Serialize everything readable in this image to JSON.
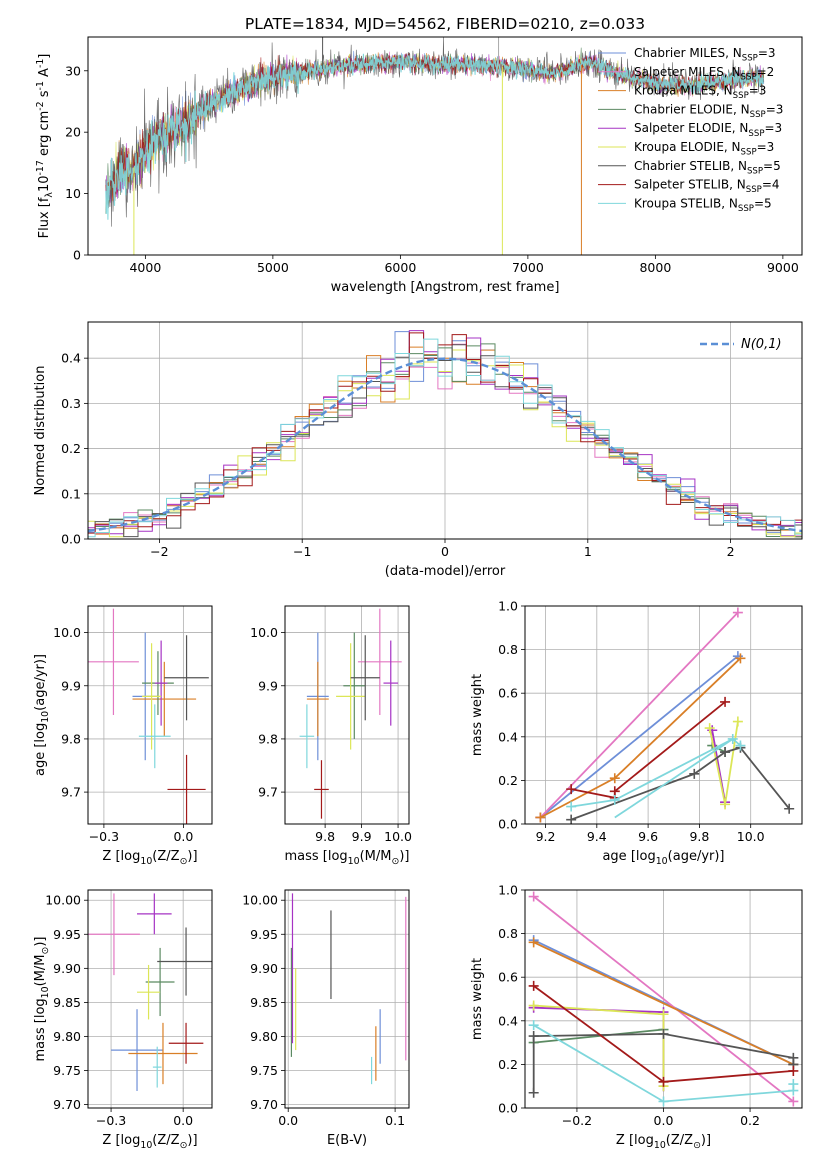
{
  "figure": {
    "title": "PLATE=1834, MJD=54562, FIBERID=0210, z=0.033"
  },
  "series_colors": [
    "#6e8fd8",
    "#e377c2",
    "#d97f27",
    "#5b8a62",
    "#a633c4",
    "#dce657",
    "#555555",
    "#a31a1a",
    "#7fd7dc"
  ],
  "chart_data": [
    {
      "id": "spectrum",
      "type": "line",
      "xlabel": "wavelength [Angstrom, rest frame]",
      "ylabel": "Flux [f$_\\lambda$10$^{-17}$ erg cm$^{-2}$ s$^{-1}$ A$^{-1}$]",
      "xlim": [
        3550,
        9150
      ],
      "ylim": [
        0,
        35.5
      ],
      "xticks": [
        4000,
        5000,
        6000,
        7000,
        8000,
        9000
      ],
      "yticks": [
        0,
        10,
        20,
        30
      ],
      "legend": "right",
      "legend_entries": [
        "Chabrier MILES, N$_{SSP}$=3",
        "Salpeter MILES, N$_{SSP}$=2",
        "Kroupa MILES, N$_{SSP}$=3",
        "Chabrier ELODIE, N$_{SSP}$=3",
        "Salpeter ELODIE, N$_{SSP}$=3",
        "Kroupa ELODIE, N$_{SSP}$=3",
        "Chabrier STELIB, N$_{SSP}$=5",
        "Salpeter STELIB, N$_{SSP}$=4",
        "Kroupa STELIB, N$_{SSP}$=5"
      ],
      "continuum": {
        "x": [
          3700,
          3800,
          3900,
          4000,
          4100,
          4300,
          4500,
          4800,
          5000,
          5300,
          5600,
          6000,
          6300,
          6600,
          6900,
          7200,
          7500,
          7700,
          8000,
          8300,
          8600,
          8800
        ],
        "y": [
          10.5,
          13.5,
          14,
          17,
          19,
          21,
          24.5,
          27.5,
          29,
          30,
          31,
          31.5,
          31,
          31,
          30.5,
          29.5,
          31.5,
          29.5,
          28,
          27.5,
          28.5,
          29
        ]
      },
      "spikes": [
        {
          "x": 5390,
          "y": 37
        },
        {
          "x": 6770,
          "y": 36
        },
        {
          "x": 3910,
          "y": 0
        },
        {
          "x": 6800,
          "y": 0
        },
        {
          "x": 7420,
          "y": 0
        }
      ]
    },
    {
      "id": "residuals",
      "type": "line",
      "xlabel": "(data-model)/error",
      "ylabel": "Normed distribution",
      "xlim": [
        -2.5,
        2.5
      ],
      "ylim": [
        0,
        0.48
      ],
      "xticks": [
        -2,
        -1,
        0,
        1,
        2
      ],
      "yticks": [
        0.0,
        0.1,
        0.2,
        0.3,
        0.4
      ],
      "legend": "top-right",
      "gaussian_label": "$\\mathcal{N}(0,1)$",
      "bin_width": 0.1
    },
    {
      "id": "age-vs-Z",
      "type": "scatter",
      "xlabel": "Z [log$_{10}$(Z/Z$_\\odot$)]",
      "ylabel": "age  [log$_{10}$(age/yr)]",
      "xlim": [
        -0.3,
        0.09
      ],
      "ylim": [
        9.64,
        10.05
      ],
      "xticks": [
        -0.25,
        0.0
      ],
      "yticks": [
        9.7,
        9.8,
        9.9,
        10.0
      ],
      "points": [
        {
          "x": -0.12,
          "xe": 0.04,
          "y": 9.88,
          "ye": 0.12
        },
        {
          "x": -0.22,
          "xe": 0.08,
          "y": 9.945,
          "ye": 0.1
        },
        {
          "x": -0.06,
          "xe": 0.1,
          "y": 9.875,
          "ye": 0.07
        },
        {
          "x": -0.08,
          "xe": 0.05,
          "y": 9.905,
          "ye": 0.06
        },
        {
          "x": -0.07,
          "xe": 0.02,
          "y": 9.905,
          "ye": 0.08
        },
        {
          "x": -0.1,
          "xe": 0.03,
          "y": 9.88,
          "ye": 0.1
        },
        {
          "x": 0.01,
          "xe": 0.07,
          "y": 9.915,
          "ye": 0.08
        },
        {
          "x": 0.01,
          "xe": 0.06,
          "y": 9.705,
          "ye": 0.065
        },
        {
          "x": -0.09,
          "xe": 0.05,
          "y": 9.805,
          "ye": 0.06
        }
      ]
    },
    {
      "id": "age-vs-mass",
      "type": "scatter",
      "xlabel": "mass [log$_{10}$(M/M$_\\odot$)]",
      "ylabel": "",
      "xlim": [
        9.69,
        10.03
      ],
      "ylim": [
        9.64,
        10.05
      ],
      "xticks": [
        9.8,
        9.9,
        10.0
      ],
      "yticks": [
        9.7,
        9.8,
        9.9,
        10.0
      ],
      "points": [
        {
          "x": 9.78,
          "xe": 0.03,
          "y": 9.88,
          "ye": 0.12
        },
        {
          "x": 9.95,
          "xe": 0.06,
          "y": 9.945,
          "ye": 0.1
        },
        {
          "x": 9.78,
          "xe": 0.03,
          "y": 9.875,
          "ye": 0.07
        },
        {
          "x": 9.88,
          "xe": 0.03,
          "y": 9.9,
          "ye": 0.1
        },
        {
          "x": 9.98,
          "xe": 0.02,
          "y": 9.905,
          "ye": 0.08
        },
        {
          "x": 9.87,
          "xe": 0.04,
          "y": 9.88,
          "ye": 0.1
        },
        {
          "x": 9.91,
          "xe": 0.04,
          "y": 9.915,
          "ye": 0.08
        },
        {
          "x": 9.79,
          "xe": 0.02,
          "y": 9.705,
          "ye": 0.055
        },
        {
          "x": 9.75,
          "xe": 0.02,
          "y": 9.805,
          "ye": 0.06
        }
      ]
    },
    {
      "id": "weight-vs-age",
      "type": "line",
      "xlabel": "age  [log$_{10}$(age/yr)]",
      "ylabel": "mass weight",
      "xlim": [
        9.12,
        10.2
      ],
      "ylim": [
        0.0,
        1.0
      ],
      "xticks": [
        9.2,
        9.4,
        9.6,
        9.8,
        10.0
      ],
      "yticks": [
        0.0,
        0.2,
        0.4,
        0.6,
        0.8,
        1.0
      ],
      "series": [
        {
          "x": [
            9.18,
            9.95
          ],
          "y": [
            0.03,
            0.77
          ]
        },
        {
          "x": [
            9.18,
            9.95
          ],
          "y": [
            0.03,
            0.97
          ]
        },
        {
          "x": [
            9.18,
            9.47,
            9.96
          ],
          "y": [
            0.03,
            0.21,
            0.76
          ]
        },
        {
          "x": [
            9.85,
            9.9
          ],
          "y": [
            0.36,
            0.33
          ]
        },
        {
          "x": [
            9.85,
            9.9
          ],
          "y": [
            0.43,
            0.1
          ]
        },
        {
          "x": [
            9.84,
            9.9,
            9.95
          ],
          "y": [
            0.44,
            0.09,
            0.47
          ]
        },
        {
          "x": [
            9.3,
            9.78,
            9.9,
            9.96,
            10.15
          ],
          "y": [
            0.02,
            0.23,
            0.33,
            0.35,
            0.07
          ]
        },
        {
          "x": [
            9.3,
            9.47,
            9.47,
            9.9
          ],
          "y": [
            0.16,
            0.12,
            0.15,
            0.56
          ]
        },
        {
          "x": [
            9.3,
            9.47,
            9.93,
            9.96
          ],
          "y": [
            0.08,
            0.11,
            0.39,
            0.36
          ]
        }
      ],
      "extra_segments": [
        {
          "series": 8,
          "x": [
            9.47,
            9.93
          ],
          "y": [
            0.03,
            0.39
          ]
        }
      ]
    },
    {
      "id": "mass-vs-Z",
      "type": "scatter",
      "xlabel": "Z [log$_{10}$(Z/Z$_\\odot$)]",
      "ylabel": "mass [log$_{10}$(M/M$_\\odot$)]",
      "xlim": [
        -0.33,
        0.1
      ],
      "ylim": [
        9.695,
        10.015
      ],
      "xticks": [
        -0.25,
        0.0
      ],
      "yticks": [
        9.7,
        9.75,
        9.8,
        9.85,
        9.9,
        9.95,
        10.0
      ],
      "points": [
        {
          "x": -0.16,
          "xe": 0.09,
          "y": 9.78,
          "ye": 0.06
        },
        {
          "x": -0.24,
          "xe": 0.09,
          "y": 9.95,
          "ye": 0.06
        },
        {
          "x": -0.07,
          "xe": 0.12,
          "y": 9.775,
          "ye": 0.045
        },
        {
          "x": -0.08,
          "xe": 0.05,
          "y": 9.88,
          "ye": 0.05
        },
        {
          "x": -0.1,
          "xe": 0.06,
          "y": 9.98,
          "ye": 0.03
        },
        {
          "x": -0.12,
          "xe": 0.04,
          "y": 9.865,
          "ye": 0.04
        },
        {
          "x": 0.01,
          "xe": 0.1,
          "y": 9.91,
          "ye": 0.05
        },
        {
          "x": 0.01,
          "xe": 0.06,
          "y": 9.79,
          "ye": 0.03
        },
        {
          "x": -0.09,
          "xe": 0.015,
          "y": 9.755,
          "ye": 0.03
        }
      ]
    },
    {
      "id": "mass-vs-ebv",
      "type": "scatter",
      "xlabel": "E(B-V)",
      "ylabel": "",
      "xlim": [
        -0.003,
        0.113
      ],
      "ylim": [
        9.695,
        10.015
      ],
      "xticks": [
        0.0,
        0.1
      ],
      "yticks": [
        9.7,
        9.75,
        9.8,
        9.85,
        9.9,
        9.95,
        10.0
      ],
      "points": [
        {
          "x": 0.086,
          "ye": 0.04,
          "y": 9.8
        },
        {
          "x": 0.11,
          "ye": 0.12,
          "y": 9.885
        },
        {
          "x": 0.082,
          "ye": 0.04,
          "y": 9.775
        },
        {
          "x": 0.003,
          "ye": 0.08,
          "y": 9.85
        },
        {
          "x": 0.004,
          "ye": 0.11,
          "y": 9.9
        },
        {
          "x": 0.007,
          "ye": 0.06,
          "y": 9.84
        },
        {
          "x": 0.04,
          "ye": 0.065,
          "y": 9.92
        },
        {
          "x": 0.0005,
          "ye": 0.0,
          "y": 9.75
        },
        {
          "x": 0.078,
          "ye": 0.02,
          "y": 9.75
        }
      ]
    },
    {
      "id": "weight-vs-Z",
      "type": "line",
      "xlabel": "Z [log$_{10}$(Z/Z$_\\odot$)]",
      "ylabel": "mass weight",
      "xlim": [
        -0.32,
        0.32
      ],
      "ylim": [
        0.0,
        1.0
      ],
      "xticks": [
        -0.2,
        0.0,
        0.2
      ],
      "yticks": [
        0.0,
        0.2,
        0.4,
        0.6,
        0.8,
        1.0
      ],
      "series": [
        {
          "x": [
            -0.3,
            0.3
          ],
          "y": [
            0.77,
            0.2
          ]
        },
        {
          "x": [
            -0.3,
            0.3
          ],
          "y": [
            0.97,
            0.03
          ]
        },
        {
          "x": [
            -0.3,
            0.3
          ],
          "y": [
            0.76,
            0.2
          ]
        },
        {
          "x": [
            -0.3,
            0.0,
            0.0
          ],
          "y": [
            0.3,
            0.36,
            0.12
          ]
        },
        {
          "x": [
            -0.3,
            0.0,
            0.0
          ],
          "y": [
            0.46,
            0.44,
            0.1
          ]
        },
        {
          "x": [
            -0.3,
            0.0,
            0.0
          ],
          "y": [
            0.47,
            0.43,
            0.1
          ]
        },
        {
          "x": [
            -0.3,
            -0.3,
            0.0,
            0.3,
            0.3
          ],
          "y": [
            0.07,
            0.33,
            0.34,
            0.23,
            0.2
          ]
        },
        {
          "x": [
            -0.3,
            0.0,
            0.3
          ],
          "y": [
            0.56,
            0.12,
            0.17
          ]
        },
        {
          "x": [
            -0.3,
            0.0,
            0.3,
            0.3
          ],
          "y": [
            0.38,
            0.03,
            0.08,
            0.11
          ]
        }
      ]
    }
  ]
}
